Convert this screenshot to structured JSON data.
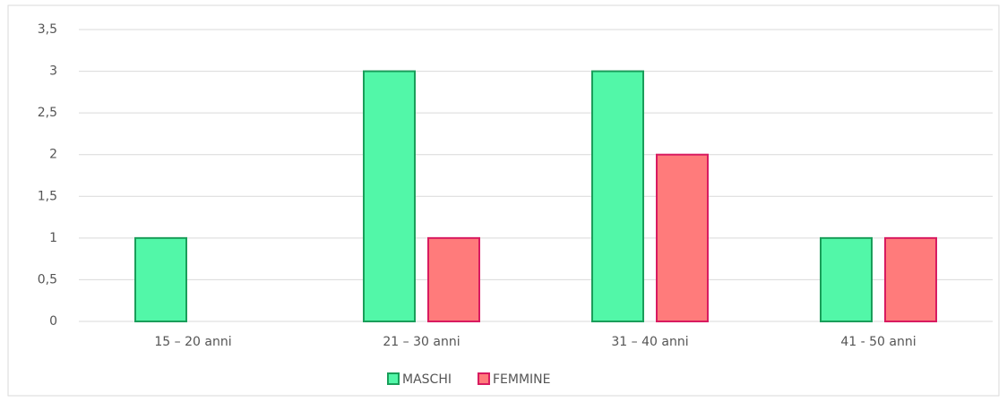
{
  "chart_data": {
    "type": "bar",
    "categories": [
      "15 – 20 anni",
      "21 – 30 anni",
      "31 – 40 anni",
      "41 - 50 anni"
    ],
    "series": [
      {
        "name": "MASCHI",
        "color": "#52f7a8",
        "values": [
          1,
          3,
          3,
          1
        ]
      },
      {
        "name": "FEMMINE",
        "color": "#ff7b7b",
        "values": [
          0,
          1,
          2,
          1
        ]
      }
    ],
    "ylim": [
      0,
      3.5
    ],
    "yticks": [
      0,
      {
        "value": 0.5,
        "label": "0,5"
      },
      1,
      {
        "value": 1.5,
        "label": "1,5"
      },
      2,
      {
        "value": 2.5,
        "label": "2,5"
      },
      3,
      {
        "value": 3.5,
        "label": "3,5"
      }
    ],
    "grid": true,
    "legend": "bottom"
  }
}
